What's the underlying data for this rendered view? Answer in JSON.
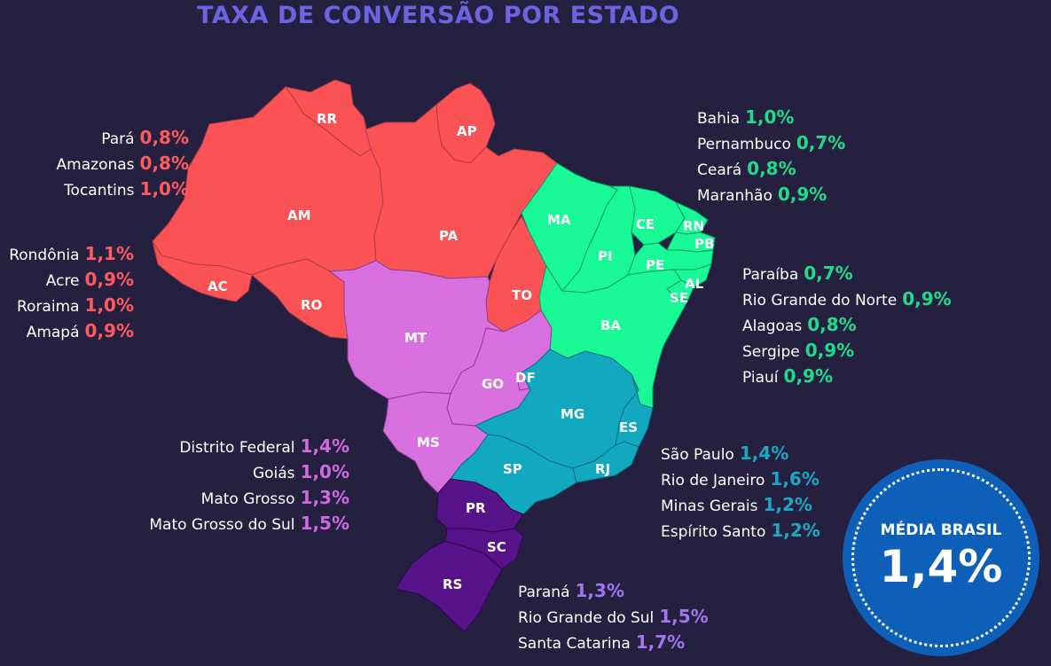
{
  "title": "TAXA DE CONVERSÃO POR ESTADO",
  "colors": {
    "background": "#25203f",
    "title": "#6d63e0",
    "norte": "#fb5355",
    "nordeste": "#19f995",
    "centro_oeste": "#d870e0",
    "sudeste": "#12a8bf",
    "sul": "#56138a",
    "legend_norte": "#ff5a5f",
    "legend_nordeste": "#1fdc8b",
    "legend_centro_oeste": "#d06ae0",
    "legend_sudeste": "#1aa8c4",
    "legend_sul": "#a276f0",
    "badge": "#0d5fb8"
  },
  "map_labels": {
    "RR": "RR",
    "AP": "AP",
    "AM": "AM",
    "PA": "PA",
    "AC": "AC",
    "RO": "RO",
    "TO": "TO",
    "MA": "MA",
    "CE": "CE",
    "RN": "RN",
    "PB": "PB",
    "PI": "PI",
    "PE": "PE",
    "AL": "AL",
    "SE": "SE",
    "BA": "BA",
    "MT": "MT",
    "GO": "GO",
    "DF": "DF",
    "MS": "MS",
    "MG": "MG",
    "ES": "ES",
    "SP": "SP",
    "RJ": "RJ",
    "PR": "PR",
    "SC": "SC",
    "RS": "RS"
  },
  "legends": {
    "norte_a": [
      {
        "name": "Pará",
        "value": "0,8%"
      },
      {
        "name": "Amazonas",
        "value": "0,8%"
      },
      {
        "name": "Tocantins",
        "value": "1,0%"
      }
    ],
    "norte_b": [
      {
        "name": "Rondônia",
        "value": "1,1%"
      },
      {
        "name": "Acre",
        "value": "0,9%"
      },
      {
        "name": "Roraima",
        "value": "1,0%"
      },
      {
        "name": "Amapá",
        "value": "0,9%"
      }
    ],
    "nordeste_a": [
      {
        "name": "Bahia",
        "value": "1,0%"
      },
      {
        "name": "Pernambuco",
        "value": "0,7%"
      },
      {
        "name": "Ceará",
        "value": "0,8%"
      },
      {
        "name": "Maranhão",
        "value": "0,9%"
      }
    ],
    "nordeste_b": [
      {
        "name": "Paraíba",
        "value": "0,7%"
      },
      {
        "name": "Rio Grande do Norte",
        "value": "0,9%"
      },
      {
        "name": "Alagoas",
        "value": "0,8%"
      },
      {
        "name": "Sergipe",
        "value": "0,9%"
      },
      {
        "name": "Piauí",
        "value": "0,9%"
      }
    ],
    "centro_oeste": [
      {
        "name": "Distrito Federal",
        "value": "1,4%"
      },
      {
        "name": "Goiás",
        "value": "1,0%"
      },
      {
        "name": "Mato Grosso",
        "value": "1,3%"
      },
      {
        "name": "Mato Grosso do Sul",
        "value": "1,5%"
      }
    ],
    "sudeste": [
      {
        "name": "São Paulo",
        "value": "1,4%"
      },
      {
        "name": "Rio de Janeiro",
        "value": "1,6%"
      },
      {
        "name": "Minas Gerais",
        "value": "1,2%"
      },
      {
        "name": "Espírito Santo",
        "value": "1,2%"
      }
    ],
    "sul": [
      {
        "name": "Paraná",
        "value": "1,3%"
      },
      {
        "name": "Rio Grande do Sul",
        "value": "1,5%"
      },
      {
        "name": "Santa Catarina",
        "value": "1,7%"
      }
    ]
  },
  "badge": {
    "label": "MÉDIA BRASIL",
    "value": "1,4%"
  }
}
